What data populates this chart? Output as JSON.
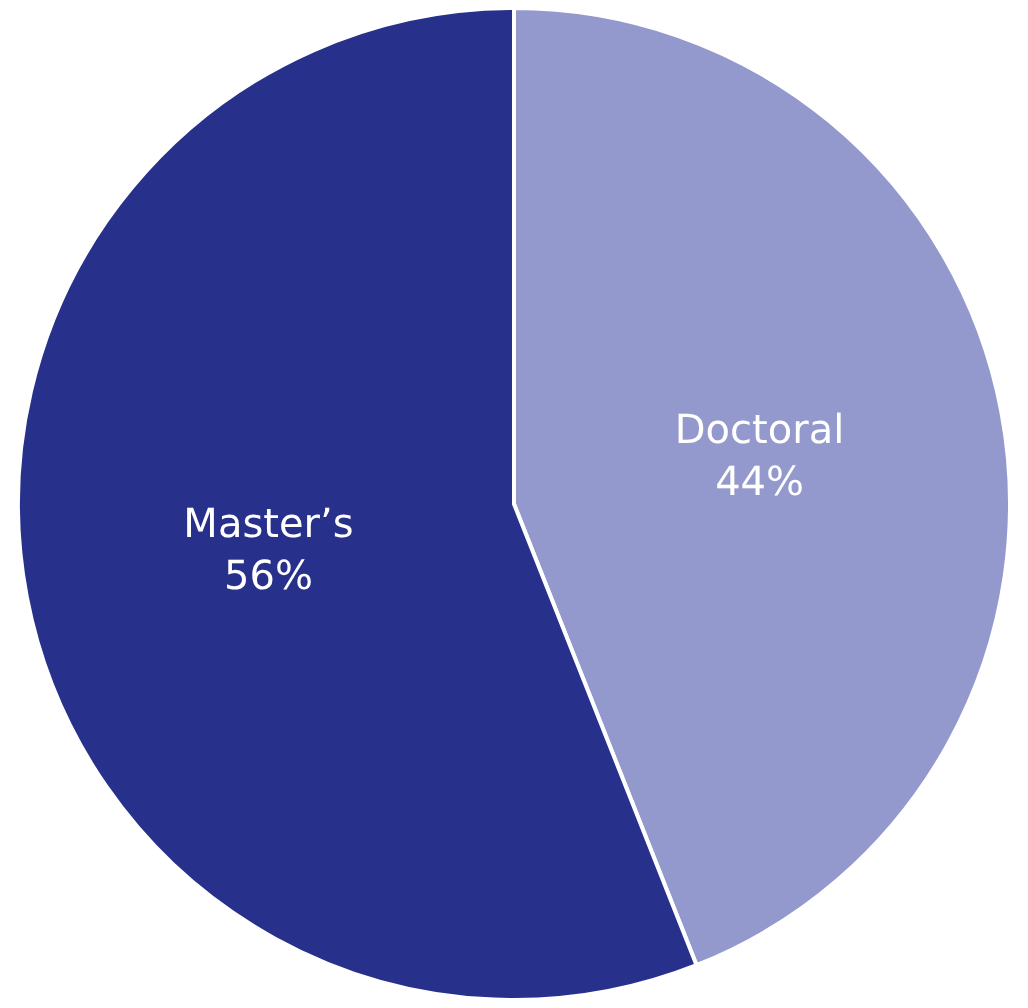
{
  "chart_data": {
    "type": "pie",
    "categories": [
      "Doctoral",
      "Master’s"
    ],
    "values": [
      44,
      56
    ],
    "colors": [
      "#9399cc",
      "#27308a"
    ],
    "value_labels": [
      "44%",
      "56%"
    ]
  }
}
